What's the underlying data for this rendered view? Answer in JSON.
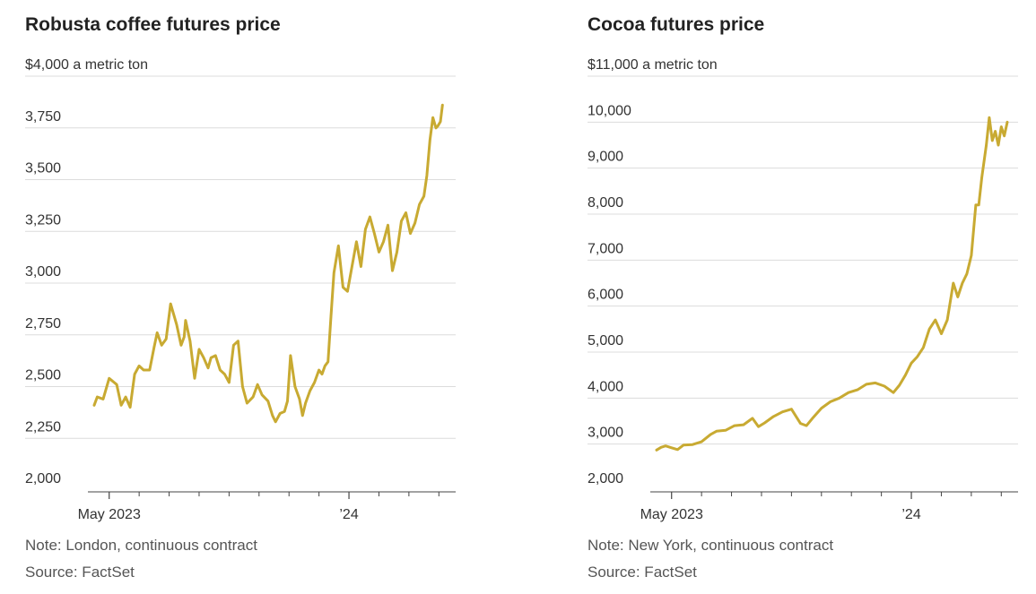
{
  "colors": {
    "line": "#c8aa32",
    "grid": "#dcdcdc",
    "axis": "#444444"
  },
  "chart_data": [
    {
      "type": "line",
      "title": "Robusta coffee futures price",
      "unit_label": "$4,000 a metric ton",
      "ylim": [
        2000,
        4000
      ],
      "y_ticks": [
        2000,
        2250,
        2500,
        2750,
        3000,
        3250,
        3500,
        3750,
        4000
      ],
      "y_tick_labels": [
        "2,000",
        "2,250",
        "2,500",
        "2,750",
        "3,000",
        "3,250",
        "3,500",
        "3,750",
        "$4,000 a metric ton"
      ],
      "x_label_ticks": [
        {
          "t": 0.5,
          "label": "May 2023"
        },
        {
          "t": 8.5,
          "label": "’24"
        }
      ],
      "x_minor_ticks": [
        1.5,
        2.5,
        3.5,
        4.5,
        5.5,
        6.5,
        7.5,
        9.5,
        10.5,
        11.5
      ],
      "xlim": [
        -0.15,
        12.0
      ],
      "series": [
        {
          "name": "Robusta",
          "x": [
            0.0,
            0.1,
            0.3,
            0.5,
            0.75,
            0.9,
            1.05,
            1.2,
            1.35,
            1.5,
            1.65,
            1.85,
            2.0,
            2.1,
            2.25,
            2.4,
            2.55,
            2.75,
            2.9,
            3.0,
            3.05,
            3.2,
            3.35,
            3.5,
            3.65,
            3.8,
            3.9,
            4.05,
            4.2,
            4.35,
            4.5,
            4.65,
            4.8,
            4.95,
            5.1,
            5.3,
            5.45,
            5.6,
            5.8,
            5.95,
            6.05,
            6.2,
            6.35,
            6.45,
            6.55,
            6.7,
            6.85,
            6.95,
            7.05,
            7.2,
            7.35,
            7.5,
            7.6,
            7.7,
            7.8,
            7.9,
            8.0,
            8.15,
            8.3,
            8.45,
            8.6,
            8.75,
            8.9,
            9.05,
            9.2,
            9.35,
            9.5,
            9.65,
            9.8,
            9.95,
            10.1,
            10.25,
            10.4,
            10.55,
            10.7,
            10.85,
            11.0,
            11.1,
            11.2,
            11.3,
            11.4,
            11.47,
            11.55,
            11.62
          ],
          "values": [
            2410,
            2450,
            2440,
            2540,
            2510,
            2410,
            2450,
            2400,
            2560,
            2600,
            2580,
            2580,
            2690,
            2760,
            2700,
            2730,
            2900,
            2800,
            2700,
            2740,
            2820,
            2720,
            2540,
            2680,
            2640,
            2590,
            2640,
            2650,
            2580,
            2560,
            2520,
            2700,
            2720,
            2500,
            2420,
            2450,
            2510,
            2460,
            2430,
            2360,
            2330,
            2370,
            2380,
            2430,
            2650,
            2500,
            2440,
            2360,
            2420,
            2480,
            2520,
            2580,
            2560,
            2600,
            2620,
            2840,
            3050,
            3180,
            2980,
            2960,
            3080,
            3200,
            3080,
            3260,
            3320,
            3240,
            3150,
            3200,
            3280,
            3060,
            3150,
            3300,
            3340,
            3240,
            3290,
            3380,
            3420,
            3520,
            3690,
            3800,
            3750,
            3760,
            3780,
            3860
          ]
        }
      ]
    },
    {
      "type": "line",
      "title": "Cocoa futures price",
      "unit_label": "$11,000 a metric ton",
      "ylim": [
        2000,
        11000
      ],
      "y_ticks": [
        2000,
        3000,
        4000,
        5000,
        6000,
        7000,
        8000,
        9000,
        10000,
        11000
      ],
      "y_tick_labels": [
        "2,000",
        "3,000",
        "4,000",
        "5,000",
        "6,000",
        "7,000",
        "8,000",
        "9,000",
        "10,000",
        "$11,000 a metric ton"
      ],
      "x_label_ticks": [
        {
          "t": 0.5,
          "label": "May 2023"
        },
        {
          "t": 8.5,
          "label": "’24"
        }
      ],
      "x_minor_ticks": [
        1.5,
        2.5,
        3.5,
        4.5,
        5.5,
        6.5,
        7.5,
        9.5,
        10.5,
        11.5
      ],
      "xlim": [
        -0.15,
        12.0
      ],
      "series": [
        {
          "name": "Cocoa",
          "x": [
            0.0,
            0.15,
            0.3,
            0.5,
            0.7,
            0.9,
            1.2,
            1.5,
            1.8,
            2.0,
            2.3,
            2.6,
            2.9,
            3.2,
            3.4,
            3.6,
            3.9,
            4.2,
            4.5,
            4.8,
            5.0,
            5.2,
            5.5,
            5.8,
            6.1,
            6.4,
            6.7,
            7.0,
            7.3,
            7.6,
            7.9,
            8.1,
            8.3,
            8.5,
            8.7,
            8.9,
            9.1,
            9.3,
            9.5,
            9.7,
            9.9,
            10.05,
            10.2,
            10.35,
            10.5,
            10.65,
            10.75,
            10.85,
            11.0,
            11.1,
            11.2,
            11.3,
            11.4,
            11.5,
            11.6,
            11.7
          ],
          "values": [
            2870,
            2930,
            2960,
            2920,
            2880,
            2980,
            2990,
            3050,
            3210,
            3280,
            3300,
            3400,
            3420,
            3560,
            3380,
            3460,
            3600,
            3700,
            3760,
            3450,
            3400,
            3560,
            3780,
            3920,
            4000,
            4120,
            4180,
            4300,
            4330,
            4260,
            4120,
            4280,
            4500,
            4760,
            4900,
            5100,
            5500,
            5700,
            5400,
            5700,
            6500,
            6200,
            6500,
            6700,
            7100,
            8200,
            8200,
            8800,
            9500,
            10100,
            9600,
            9800,
            9500,
            9900,
            9700,
            10000
          ]
        }
      ]
    }
  ],
  "panels": [
    {
      "title": "Robusta coffee futures price",
      "note": "Note: London, continuous contract",
      "source": "Source: FactSet"
    },
    {
      "title": "Cocoa futures price",
      "note": "Note: New York, continuous contract",
      "source": "Source: FactSet"
    }
  ]
}
